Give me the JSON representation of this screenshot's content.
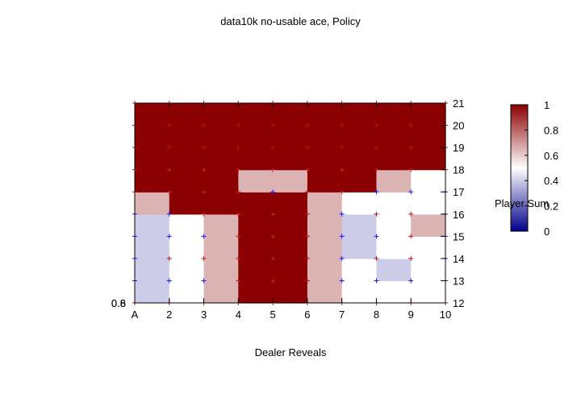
{
  "chart_data": {
    "type": "heatmap",
    "title": "data10k no-usable ace, Policy",
    "xlabel": "Dealer Reveals",
    "ylabel": "Player Sum",
    "x_tick_labels": [
      "A",
      "2",
      "3",
      "4",
      "5",
      "6",
      "7",
      "8",
      "9",
      "10"
    ],
    "y_tick_labels": [
      "12",
      "13",
      "14",
      "15",
      "16",
      "17",
      "18",
      "19",
      "20",
      "21"
    ],
    "left_axis_tick_labels": [
      "0.6",
      "0.8"
    ],
    "xlim": [
      1,
      10
    ],
    "ylim": [
      12,
      21
    ],
    "colorbar": {
      "range": [
        0,
        1
      ],
      "tick_labels": [
        "0",
        "0.2",
        "0.4",
        "0.6",
        "0.8",
        "1"
      ],
      "colors": [
        "#00008b",
        "#ffffff",
        "#8b0000"
      ]
    },
    "cells": {
      "x_edges": [
        1,
        2,
        3,
        4,
        5,
        6,
        7,
        8,
        9,
        10
      ],
      "y_edges": [
        12,
        13,
        14,
        15,
        16,
        17,
        18,
        21
      ],
      "values": [
        [
          0.4,
          0.5,
          0.65,
          1,
          1,
          0.65,
          0.5,
          0.5,
          0.5
        ],
        [
          0.4,
          0.5,
          0.65,
          1,
          1,
          0.65,
          0.5,
          0.4,
          0.5
        ],
        [
          0.4,
          0.5,
          0.65,
          1,
          1,
          0.65,
          0.4,
          0.5,
          0.5
        ],
        [
          0.4,
          0.5,
          0.65,
          1,
          1,
          0.65,
          0.4,
          0.5,
          0.65
        ],
        [
          0.65,
          1,
          1,
          1,
          1,
          0.65,
          0.5,
          0.5,
          0.5
        ],
        [
          1,
          1,
          1,
          0.65,
          0.65,
          1,
          1,
          0.65,
          0.5
        ],
        [
          1,
          1,
          1,
          1,
          1,
          1,
          1,
          1,
          1
        ]
      ]
    },
    "points": {
      "x": [
        1,
        2,
        3,
        4,
        5,
        6,
        7,
        8,
        9,
        10
      ],
      "y": [
        12,
        13,
        14,
        15,
        16,
        17,
        18,
        19,
        20,
        21
      ],
      "actions": [
        [
          1,
          1,
          1,
          1,
          1,
          1,
          1,
          1,
          1,
          1
        ],
        [
          0,
          0,
          0,
          1,
          1,
          1,
          0,
          0,
          0,
          0
        ],
        [
          0,
          1,
          1,
          1,
          1,
          1,
          0,
          1,
          1,
          0
        ],
        [
          0,
          0,
          0,
          1,
          1,
          1,
          0,
          0,
          1,
          0
        ],
        [
          0,
          0,
          1,
          1,
          1,
          1,
          0,
          1,
          1,
          0
        ],
        [
          1,
          1,
          1,
          1,
          0,
          1,
          1,
          0,
          0,
          0
        ],
        [
          1,
          1,
          1,
          1,
          1,
          1,
          1,
          1,
          1,
          1
        ],
        [
          1,
          1,
          1,
          1,
          1,
          1,
          1,
          1,
          1,
          1
        ],
        [
          1,
          1,
          1,
          1,
          1,
          1,
          1,
          1,
          1,
          1
        ],
        [
          1,
          1,
          1,
          1,
          1,
          1,
          1,
          1,
          1,
          1
        ]
      ],
      "action_colors": [
        "#1414ff",
        "#b51414"
      ]
    }
  }
}
